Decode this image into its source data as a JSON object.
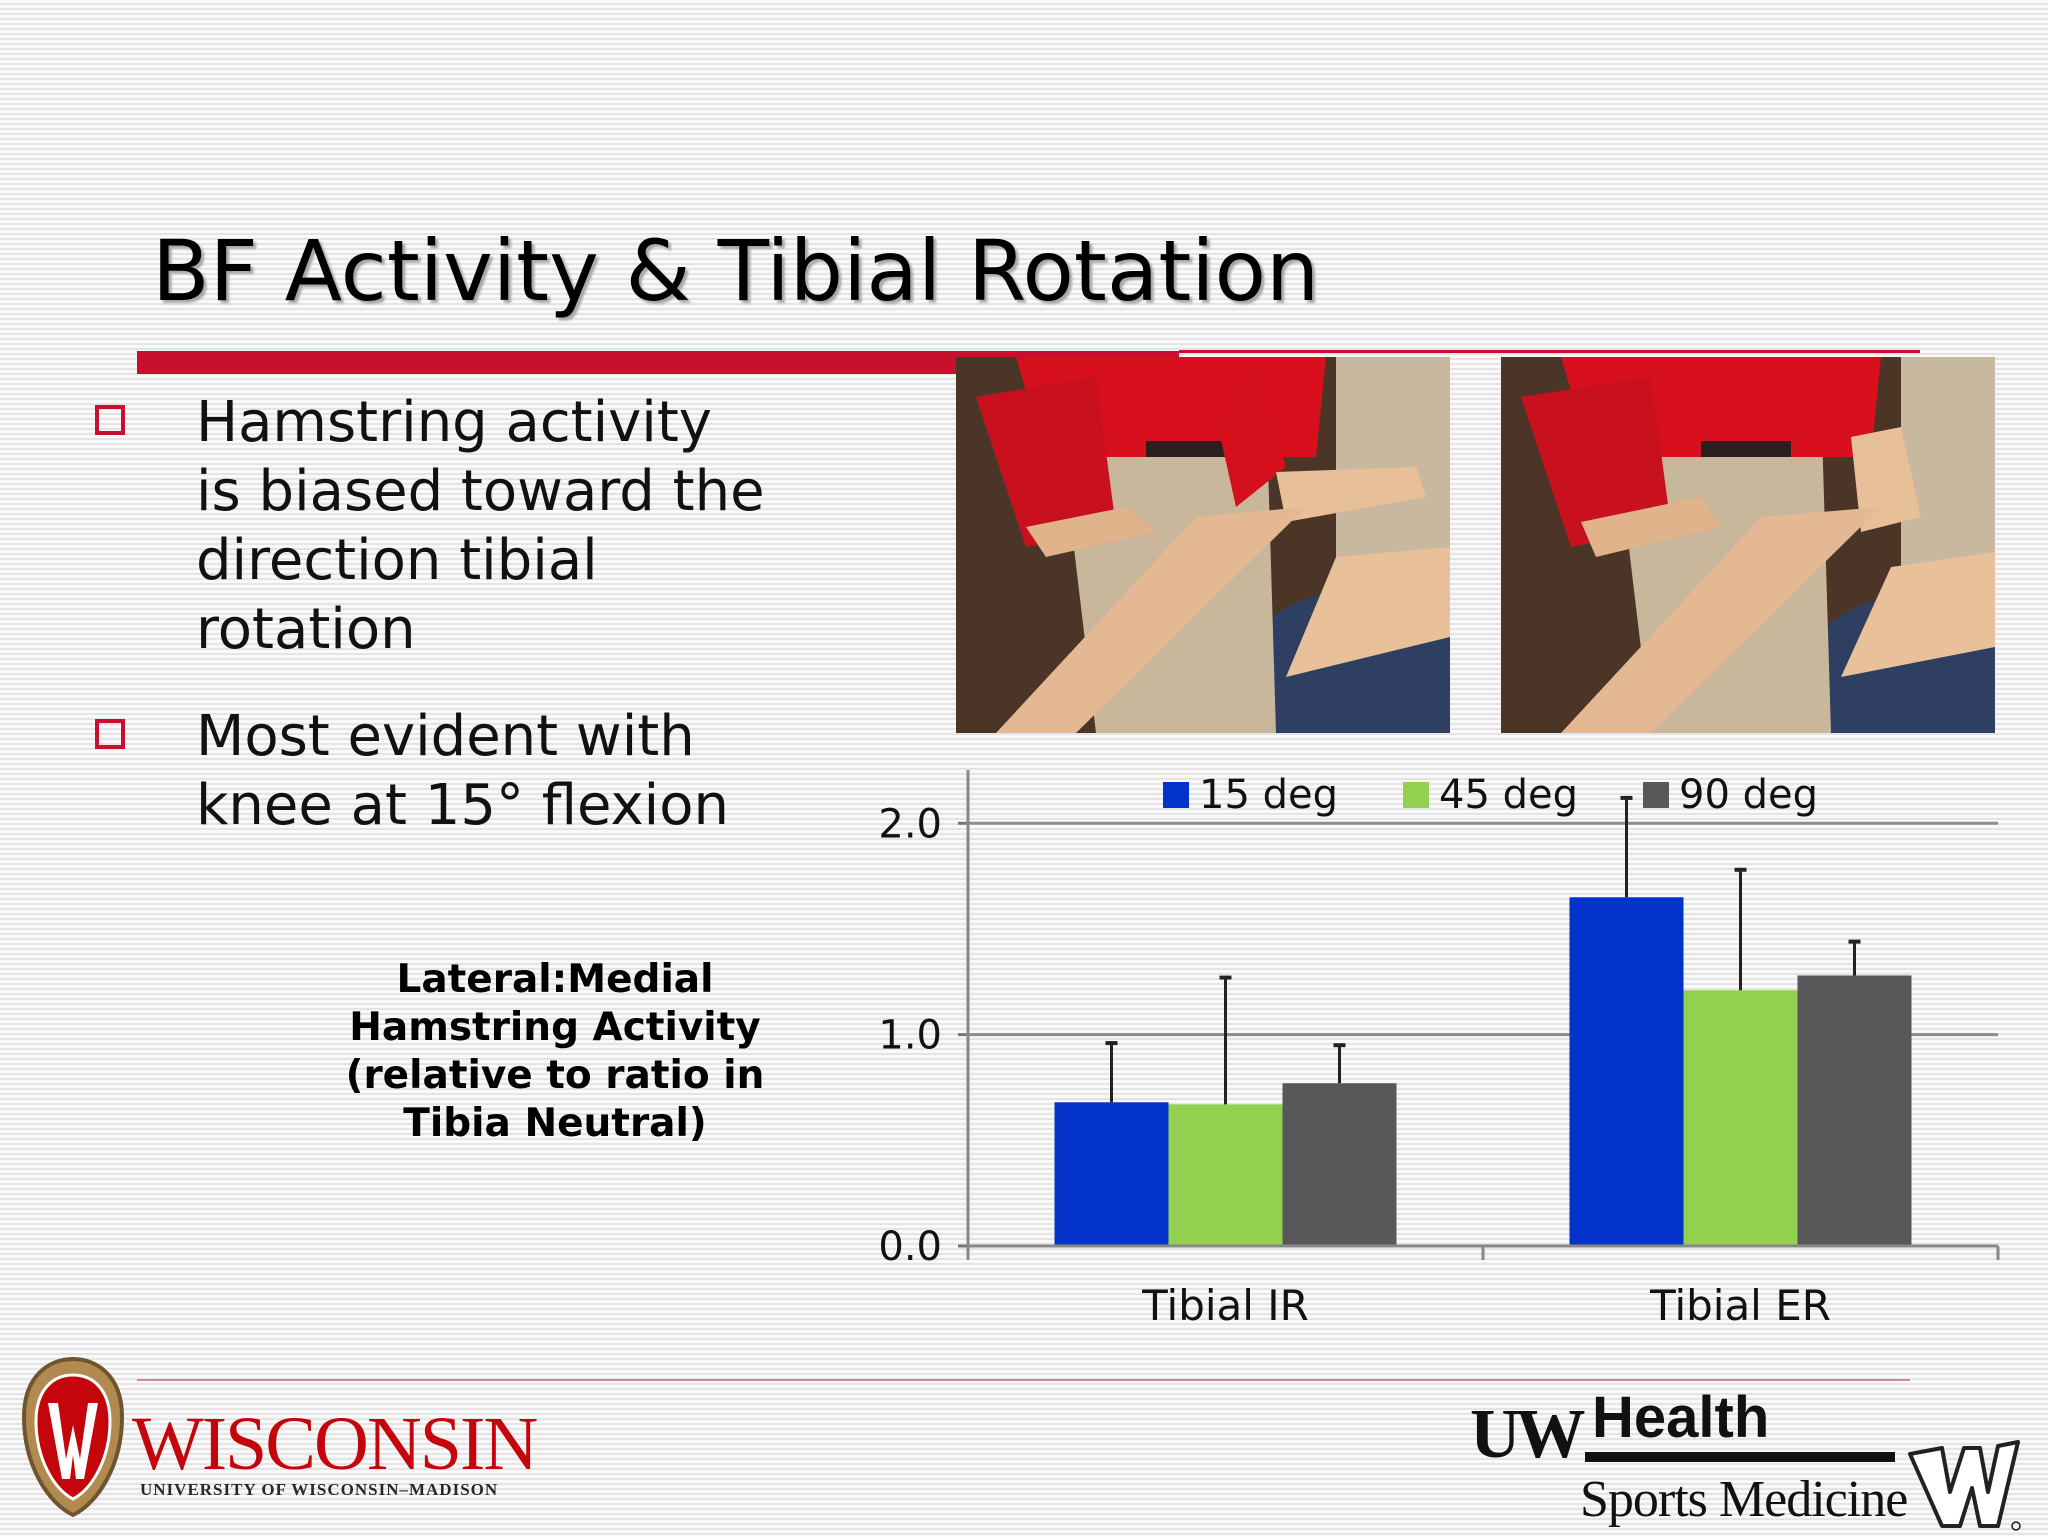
{
  "slide": {
    "title": "BF Activity & Tibial Rotation",
    "bullets": [
      {
        "line1": "Hamstring activity",
        "line2": "is biased toward the",
        "line3": "direction tibial",
        "line4": "rotation"
      },
      {
        "line1": "Most evident with",
        "line2": "knee at 15° flexion"
      }
    ],
    "accent_color": "#c8102e"
  },
  "chart_data": {
    "type": "bar",
    "ylabel_lines": [
      "Lateral:Medial",
      "Hamstring Activity",
      "(relative to ratio in",
      "Tibia Neutral)"
    ],
    "categories": [
      "Tibial IR",
      "Tibial ER"
    ],
    "series": [
      {
        "name": "15 deg",
        "color": "#0433cc",
        "values": [
          0.68,
          1.65
        ],
        "error_upper": [
          0.96,
          2.12
        ]
      },
      {
        "name": "45 deg",
        "color": "#92d050",
        "values": [
          0.67,
          1.21
        ],
        "error_upper": [
          1.27,
          1.78
        ]
      },
      {
        "name": "90 deg",
        "color": "#58585a",
        "values": [
          0.77,
          1.28
        ],
        "error_upper": [
          0.95,
          1.44
        ]
      }
    ],
    "yticks": [
      "0.0",
      "1.0",
      "2.0"
    ],
    "ylim": [
      0,
      2.2
    ],
    "grid": true,
    "legend_position": "top"
  },
  "footer": {
    "university_word": "WISCONSIN",
    "university_sub": "UNIVERSITY OF WISCONSIN–MADISON",
    "partner_uw": "UW",
    "partner_health": "Health",
    "partner_division": "Sports Medicine"
  }
}
